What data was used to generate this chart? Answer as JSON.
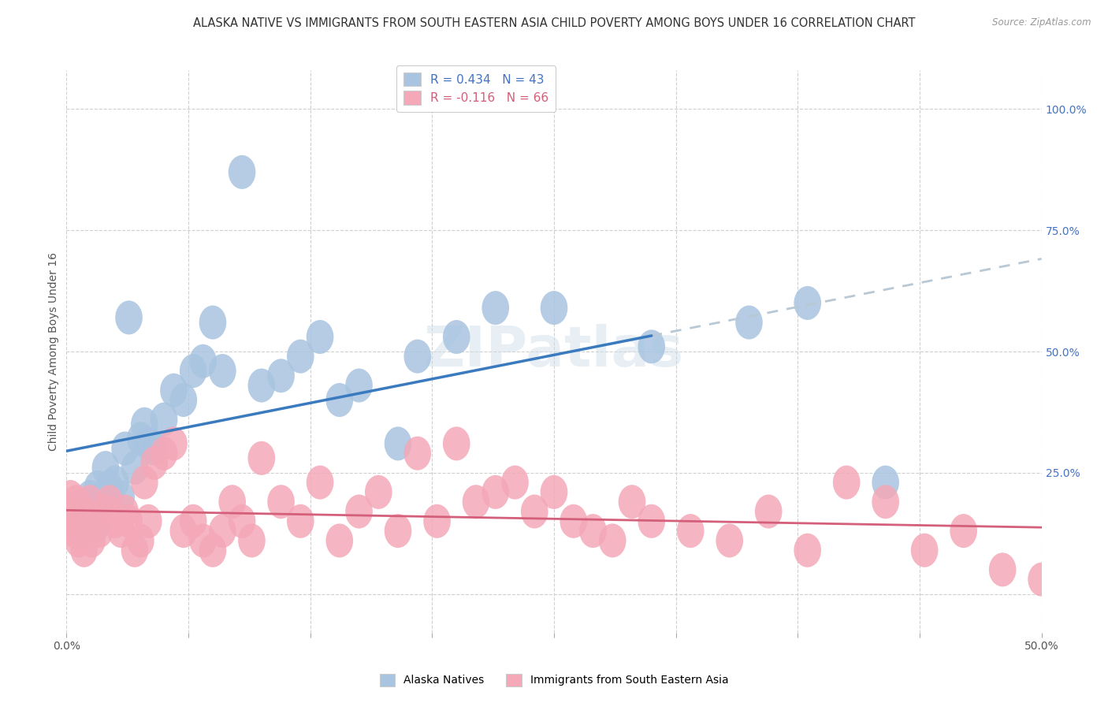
{
  "title": "ALASKA NATIVE VS IMMIGRANTS FROM SOUTH EASTERN ASIA CHILD POVERTY AMONG BOYS UNDER 16 CORRELATION CHART",
  "source": "Source: ZipAtlas.com",
  "ylabel": "Child Poverty Among Boys Under 16",
  "r_alaska": 0.434,
  "n_alaska": 43,
  "r_sea": -0.116,
  "n_sea": 66,
  "color_alaska": "#a8c4e0",
  "color_sea": "#f4a8b8",
  "color_line_alaska": "#3a7abf",
  "color_line_sea": "#d45f7a",
  "color_line_dashed": "#b8c8d4",
  "watermark": "ZIPatlas",
  "background_color": "#ffffff",
  "xlim": [
    0,
    50
  ],
  "ylim": [
    -8,
    108
  ],
  "xtick_positions": [
    0,
    6.25,
    12.5,
    18.75,
    25,
    31.25,
    37.5,
    43.75,
    50
  ],
  "xtick_show_labels": [
    0,
    50
  ],
  "ytick_positions": [
    0,
    25,
    50,
    75,
    100
  ],
  "ytick_labels_right": [
    "",
    "25.0%",
    "50.0%",
    "75.0%",
    "100.0%"
  ],
  "legend_labels": [
    "Alaska Natives",
    "Immigrants from South Eastern Asia"
  ],
  "alaska_x": [
    0.3,
    0.5,
    0.8,
    1.0,
    1.2,
    1.4,
    1.5,
    1.6,
    1.8,
    2.0,
    2.2,
    2.5,
    2.8,
    3.0,
    3.2,
    3.5,
    3.8,
    4.0,
    4.2,
    4.5,
    5.0,
    5.5,
    6.0,
    6.5,
    7.0,
    7.5,
    8.0,
    9.0,
    10.0,
    11.0,
    12.0,
    13.0,
    14.0,
    15.0,
    17.0,
    18.0,
    20.0,
    22.0,
    25.0,
    30.0,
    35.0,
    38.0,
    42.0
  ],
  "alaska_y": [
    15,
    18,
    13,
    16,
    20,
    18,
    14,
    22,
    19,
    26,
    22,
    23,
    20,
    30,
    57,
    26,
    32,
    35,
    31,
    30,
    36,
    42,
    40,
    46,
    48,
    56,
    46,
    87,
    43,
    45,
    49,
    53,
    40,
    43,
    31,
    49,
    53,
    59,
    59,
    51,
    56,
    60,
    23
  ],
  "sea_x": [
    0.2,
    0.3,
    0.4,
    0.5,
    0.6,
    0.7,
    0.8,
    0.9,
    1.0,
    1.1,
    1.2,
    1.3,
    1.5,
    1.7,
    2.0,
    2.2,
    2.5,
    2.8,
    3.0,
    3.2,
    3.5,
    3.8,
    4.0,
    4.2,
    4.5,
    5.0,
    5.5,
    6.0,
    6.5,
    7.0,
    7.5,
    8.0,
    8.5,
    9.0,
    9.5,
    10.0,
    11.0,
    12.0,
    13.0,
    14.0,
    15.0,
    16.0,
    17.0,
    18.0,
    19.0,
    20.0,
    21.0,
    22.0,
    23.0,
    24.0,
    25.0,
    26.0,
    27.0,
    28.0,
    29.0,
    30.0,
    32.0,
    34.0,
    36.0,
    38.0,
    40.0,
    42.0,
    44.0,
    46.0,
    48.0,
    50.0
  ],
  "sea_y": [
    20,
    16,
    13,
    19,
    11,
    15,
    17,
    9,
    16,
    13,
    19,
    11,
    15,
    13,
    17,
    19,
    15,
    13,
    17,
    15,
    9,
    11,
    23,
    15,
    27,
    29,
    31,
    13,
    15,
    11,
    9,
    13,
    19,
    15,
    11,
    28,
    19,
    15,
    23,
    11,
    17,
    21,
    13,
    29,
    15,
    31,
    19,
    21,
    23,
    17,
    21,
    15,
    13,
    11,
    19,
    15,
    13,
    11,
    17,
    9,
    23,
    19,
    9,
    13,
    5,
    3
  ]
}
